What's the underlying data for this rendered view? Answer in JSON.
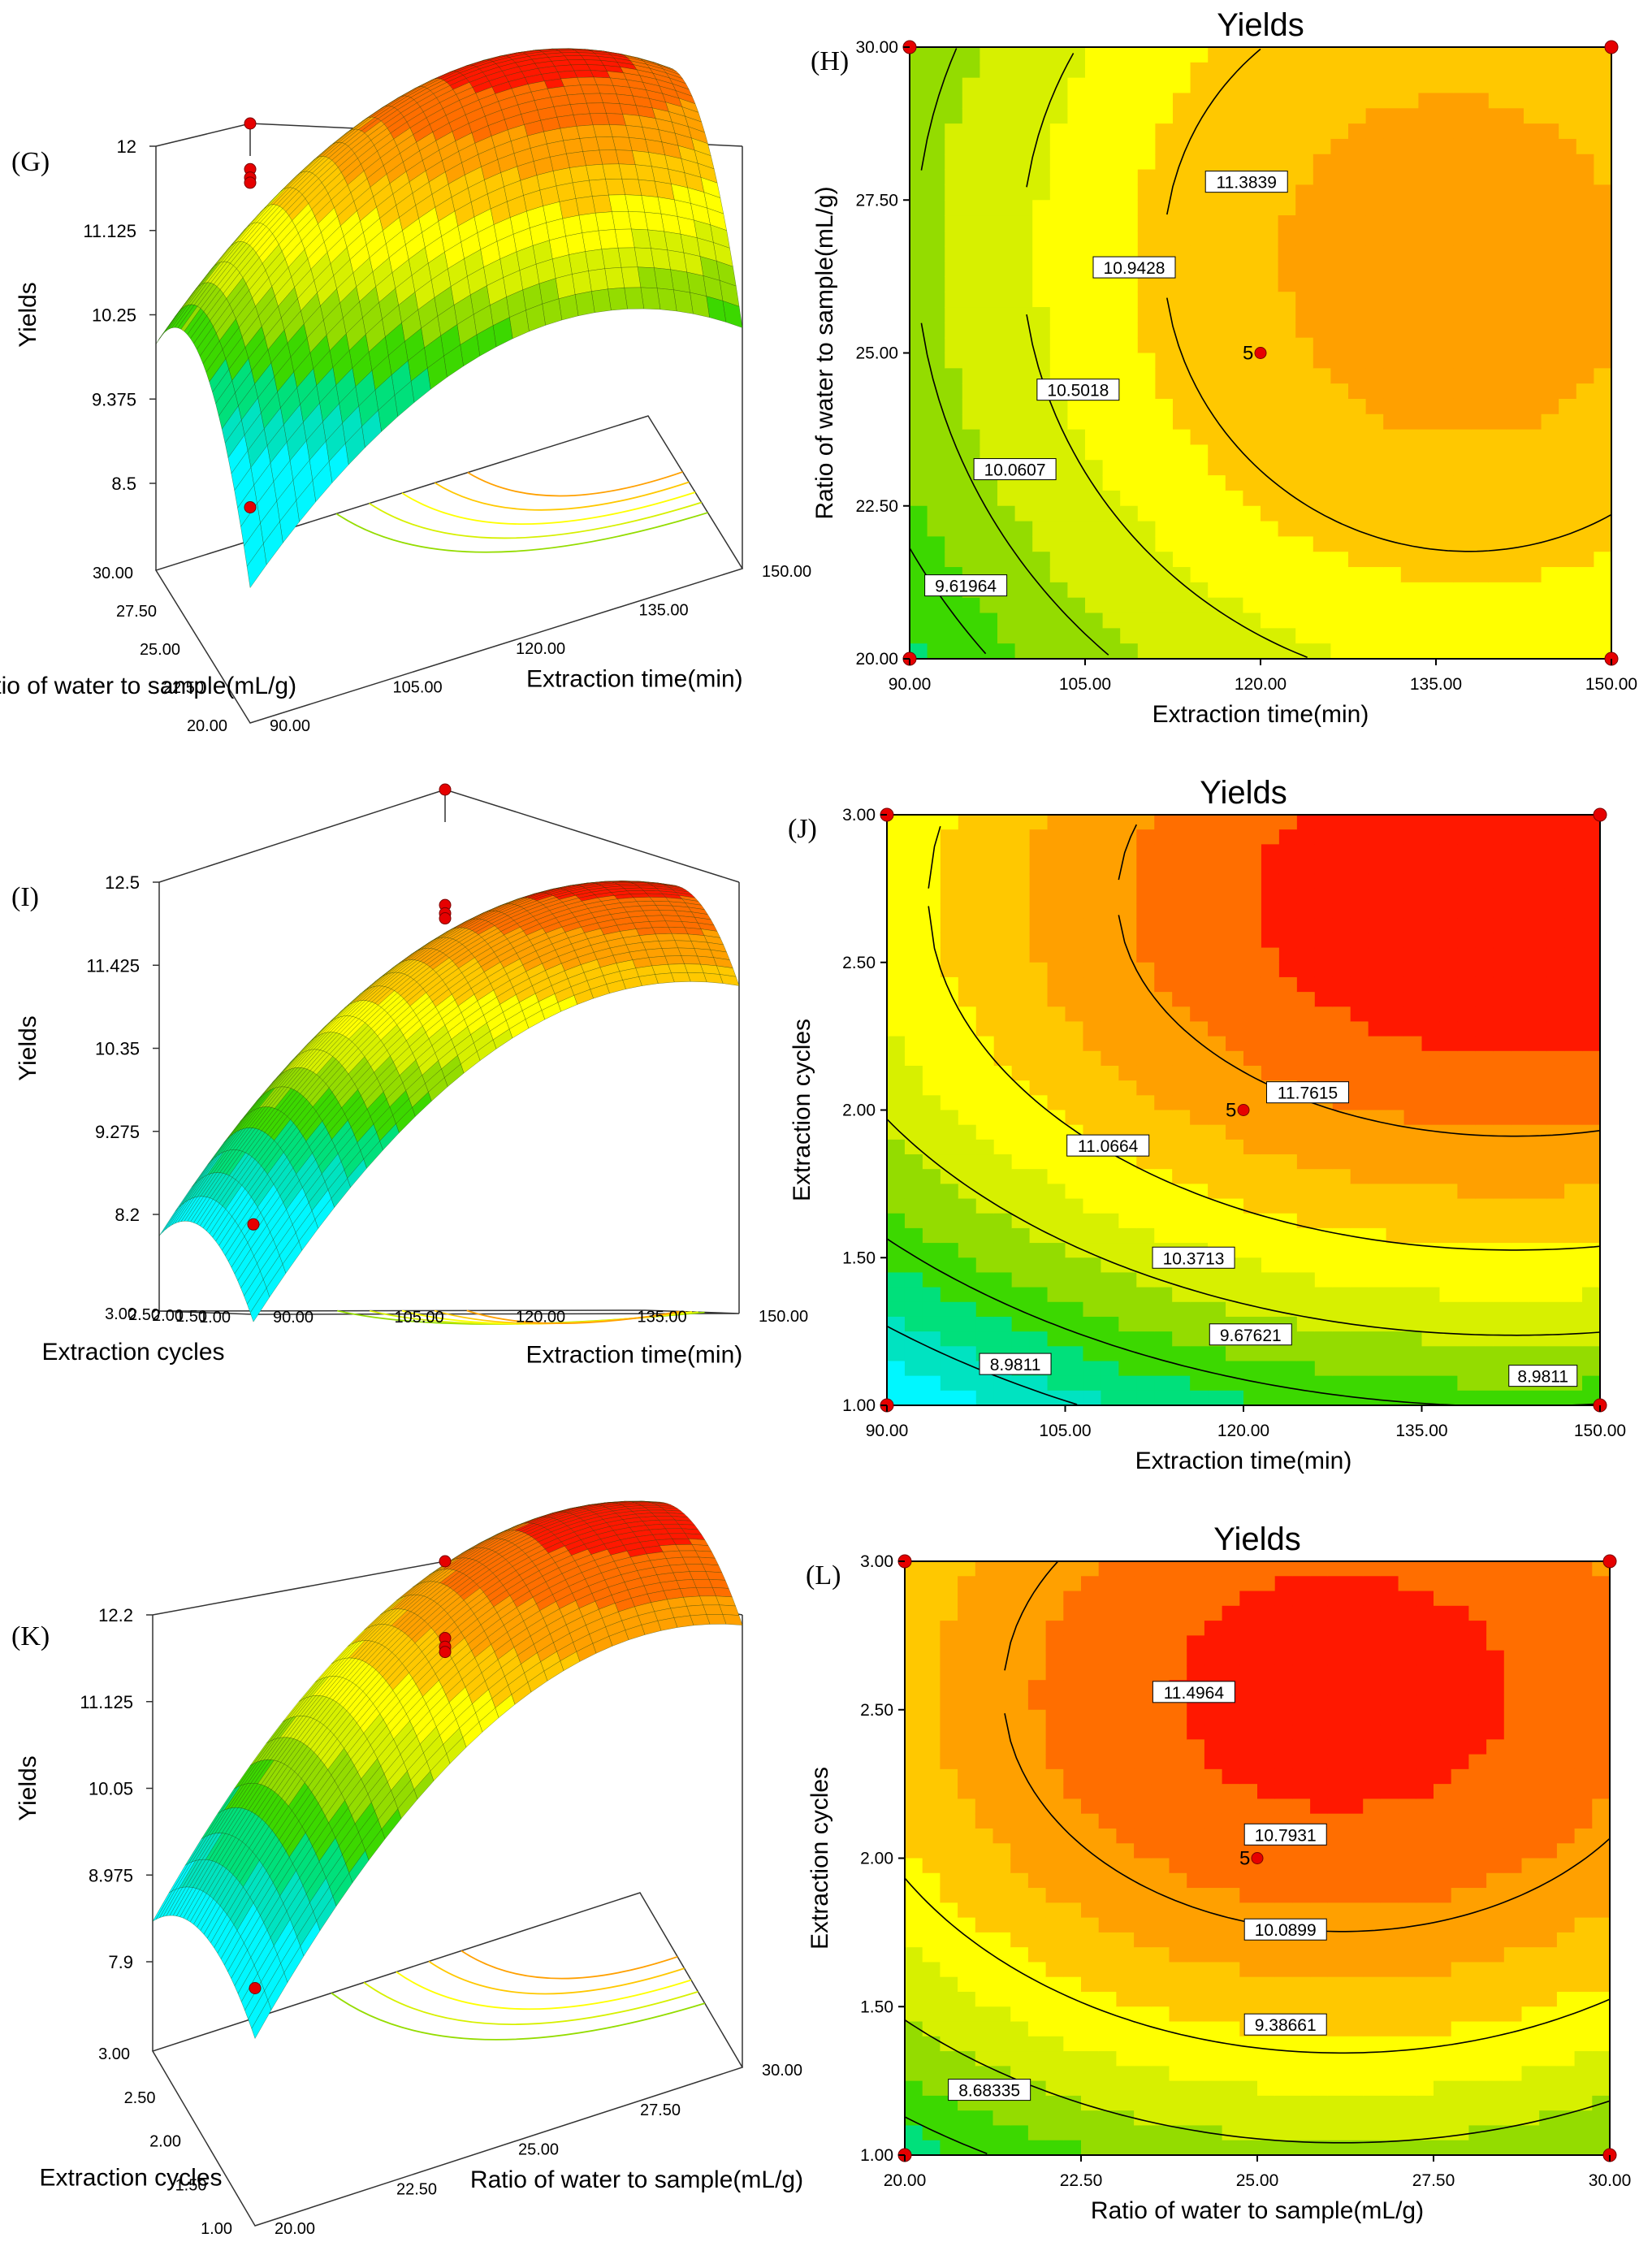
{
  "figure": {
    "description_free": true
  },
  "colors": {
    "c1": "#00f7ff",
    "c2": "#00e3c1",
    "c3": "#00e07b",
    "c4": "#3cd800",
    "c5": "#94dc00",
    "c6": "#d7f000",
    "c7": "#ffff00",
    "c8": "#ffc800",
    "c9": "#ffa000",
    "c10": "#ff6e00",
    "c11": "#ff1800",
    "design_point": "#e60000",
    "contour_line": "#000000"
  },
  "chart_data": [
    {
      "id": "G",
      "panel_label": "(G)",
      "type": "surface",
      "zlabel": "Yields",
      "zticks": [
        "12",
        "11.125",
        "10.25",
        "9.375",
        "8.5"
      ],
      "left_axis": {
        "label": "Ratio of water to sample(mL/g)",
        "ticks": [
          "30.00",
          "27.50",
          "25.00",
          "22.50",
          "20.00"
        ]
      },
      "right_axis": {
        "label": "Extraction time(min)",
        "ticks": [
          "90.00",
          "105.00",
          "120.00",
          "135.00",
          "150.00"
        ]
      },
      "zrange": [
        8.5,
        12
      ]
    },
    {
      "id": "H",
      "panel_label": "(H)",
      "type": "contour",
      "title": "Yields",
      "xlabel": "Extraction time(min)",
      "ylabel": "Ratio of water to sample(mL/g)",
      "xlim": [
        90,
        150
      ],
      "ylim": [
        20,
        30
      ],
      "xticks": [
        "90.00",
        "105.00",
        "120.00",
        "135.00",
        "150.00"
      ],
      "yticks": [
        "20.00",
        "22.50",
        "25.00",
        "27.50",
        "30.00"
      ],
      "contour_levels": [
        "9.61964",
        "10.0607",
        "10.5018",
        "10.9428",
        "11.3839"
      ],
      "center_point": {
        "x": 120,
        "y": 25,
        "label": "5"
      }
    },
    {
      "id": "I",
      "panel_label": "(I)",
      "type": "surface",
      "zlabel": "Yields",
      "zticks": [
        "12.5",
        "11.425",
        "10.35",
        "9.275",
        "8.2"
      ],
      "left_axis": {
        "label": "Extraction cycles",
        "ticks": [
          "3.00",
          "2.50",
          "2.00",
          "1.50",
          "1.00"
        ]
      },
      "right_axis": {
        "label": "Extraction time(min)",
        "ticks": [
          "90.00",
          "105.00",
          "120.00",
          "135.00",
          "150.00"
        ]
      },
      "zrange": [
        8.2,
        12.5
      ]
    },
    {
      "id": "J",
      "panel_label": "(J)",
      "type": "contour",
      "title": "Yields",
      "xlabel": "Extraction time(min)",
      "ylabel": "Extraction cycles",
      "xlim": [
        90,
        150
      ],
      "ylim": [
        1,
        3
      ],
      "xticks": [
        "90.00",
        "105.00",
        "120.00",
        "135.00",
        "150.00"
      ],
      "yticks": [
        "1.00",
        "1.50",
        "2.00",
        "2.50",
        "3.00"
      ],
      "contour_levels": [
        "8.9811",
        "9.67621",
        "10.3713",
        "11.0664",
        "11.7615"
      ],
      "extra_label": "8.9811",
      "center_point": {
        "x": 120,
        "y": 2,
        "label": "5"
      }
    },
    {
      "id": "K",
      "panel_label": "(K)",
      "type": "surface",
      "zlabel": "Yields",
      "zticks": [
        "12.2",
        "11.125",
        "10.05",
        "8.975",
        "7.9"
      ],
      "left_axis": {
        "label": "Extraction cycles",
        "ticks": [
          "3.00",
          "2.50",
          "2.00",
          "1.50",
          "1.00"
        ]
      },
      "right_axis": {
        "label": "Ratio of water to sample(mL/g)",
        "ticks": [
          "20.00",
          "22.50",
          "25.00",
          "27.50",
          "30.00"
        ]
      },
      "zrange": [
        7.9,
        12.2
      ]
    },
    {
      "id": "L",
      "panel_label": "(L)",
      "type": "contour",
      "title": "Yields",
      "xlabel": "Ratio of water to sample(mL/g)",
      "ylabel": "Extraction cycles",
      "xlim": [
        20,
        30
      ],
      "ylim": [
        1,
        3
      ],
      "xticks": [
        "20.00",
        "22.50",
        "25.00",
        "27.50",
        "30.00"
      ],
      "yticks": [
        "1.00",
        "1.50",
        "2.00",
        "2.50",
        "3.00"
      ],
      "contour_levels": [
        "8.68335",
        "9.38661",
        "10.0899",
        "10.7931",
        "11.4964"
      ],
      "center_point": {
        "x": 25,
        "y": 2,
        "label": "5"
      }
    }
  ]
}
